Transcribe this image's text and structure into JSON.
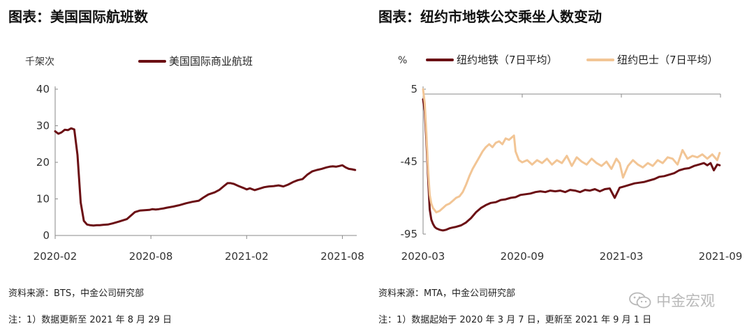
{
  "left_panel": {
    "title": "图表：美国国际航班数",
    "source": "资料来源：BTS，中金公司研究部",
    "note": "注：1）数据更新至 2021 年 8 月 29 日"
  },
  "right_panel": {
    "title": "图表：纽约市地铁公交乘坐人数变动",
    "source": "资料来源：MTA，中金公司研究部",
    "note": "注：1）数据起始于 2020 年 3 月 7 日，更新至 2021 年 9 月 1 日"
  },
  "watermark": {
    "text": "中金宏观",
    "icon": "wechat-icon"
  },
  "colors": {
    "dark_red": "#6b0f14",
    "tan": "#f2c595",
    "axis": "#888888"
  },
  "chart_data": [
    {
      "type": "line",
      "title": "",
      "ylabel": "千架次",
      "xlabel": "",
      "ylim": [
        0,
        40
      ],
      "yticks": [
        0,
        10,
        20,
        30,
        40
      ],
      "xtick_labels": [
        "2020-02",
        "2020-08",
        "2021-02",
        "2021-08"
      ],
      "xtick_positions": [
        0,
        6,
        12,
        18
      ],
      "x_range": [
        0,
        18.9
      ],
      "legend_position": "top",
      "grid": false,
      "series": [
        {
          "name": "美国国际商业航班",
          "color": "#6b0f14",
          "x": [
            0,
            0.2,
            0.4,
            0.6,
            0.8,
            1.0,
            1.2,
            1.4,
            1.6,
            1.8,
            2.0,
            2.2,
            2.4,
            2.6,
            2.8,
            3.0,
            3.3,
            3.6,
            4.0,
            4.5,
            5.0,
            5.3,
            5.6,
            5.9,
            6.1,
            6.3,
            6.5,
            6.8,
            7.0,
            7.4,
            7.8,
            8.2,
            8.6,
            9.0,
            9.3,
            9.6,
            10.0,
            10.3,
            10.6,
            10.8,
            11.0,
            11.2,
            11.5,
            11.8,
            12.0,
            12.2,
            12.5,
            12.8,
            13.1,
            13.4,
            13.7,
            14.0,
            14.3,
            14.6,
            14.9,
            15.2,
            15.5,
            15.8,
            16.1,
            16.4,
            16.7,
            17.0,
            17.2,
            17.4,
            17.6,
            17.8,
            18.0,
            18.2,
            18.4,
            18.6,
            18.8
          ],
          "values": [
            28.5,
            27.8,
            28.2,
            28.9,
            28.8,
            29.3,
            29.0,
            22.0,
            9.0,
            4.0,
            3.0,
            2.8,
            2.7,
            2.8,
            2.8,
            2.9,
            3.0,
            3.3,
            3.8,
            4.5,
            6.4,
            6.8,
            6.9,
            7.0,
            7.2,
            7.1,
            7.2,
            7.4,
            7.6,
            7.9,
            8.3,
            8.8,
            9.2,
            9.5,
            10.4,
            11.2,
            11.8,
            12.5,
            13.6,
            14.3,
            14.3,
            14.1,
            13.5,
            13.0,
            12.6,
            12.9,
            12.4,
            12.8,
            13.2,
            13.4,
            13.5,
            13.7,
            13.4,
            13.9,
            14.6,
            15.1,
            15.4,
            16.6,
            17.5,
            17.9,
            18.2,
            18.6,
            18.8,
            18.9,
            18.8,
            19.0,
            19.2,
            18.6,
            18.2,
            18.1,
            17.9
          ]
        }
      ]
    },
    {
      "type": "line",
      "title": "",
      "ylabel": "%",
      "xlabel": "",
      "ylim": [
        -95,
        5
      ],
      "yticks": [
        5,
        -45,
        -95
      ],
      "xtick_labels": [
        "2020-03",
        "2020-09",
        "2021-03",
        "2021-09"
      ],
      "xtick_positions": [
        0,
        6,
        12,
        18
      ],
      "x_range": [
        0,
        18
      ],
      "legend_position": "top",
      "grid": false,
      "series": [
        {
          "name": "纽约地铁（7日平均）",
          "color": "#6b0f14",
          "x": [
            0,
            0.1,
            0.2,
            0.3,
            0.4,
            0.5,
            0.6,
            0.7,
            0.8,
            1.0,
            1.2,
            1.4,
            1.6,
            1.8,
            2.0,
            2.3,
            2.6,
            2.9,
            3.2,
            3.5,
            3.8,
            4.1,
            4.4,
            4.7,
            5.0,
            5.3,
            5.6,
            5.9,
            6.2,
            6.5,
            6.8,
            7.1,
            7.4,
            7.7,
            8.0,
            8.3,
            8.6,
            8.9,
            9.2,
            9.5,
            9.8,
            10.1,
            10.4,
            10.7,
            11.0,
            11.3,
            11.6,
            11.9,
            12.2,
            12.5,
            12.8,
            13.1,
            13.4,
            13.7,
            14.0,
            14.3,
            14.6,
            14.9,
            15.2,
            15.5,
            15.8,
            16.1,
            16.4,
            16.7,
            17.0,
            17.2,
            17.4,
            17.6,
            17.8,
            17.95
          ],
          "values": [
            -2,
            -10,
            -30,
            -55,
            -78,
            -85,
            -88,
            -90,
            -91,
            -92,
            -92.5,
            -92,
            -91,
            -90.5,
            -90,
            -89,
            -87,
            -84,
            -80,
            -77,
            -75,
            -73.5,
            -73,
            -71.5,
            -71,
            -70,
            -69.5,
            -68,
            -67.5,
            -67,
            -66,
            -65.5,
            -66,
            -65,
            -65.5,
            -65,
            -66,
            -64.5,
            -65,
            -66,
            -64.5,
            -65,
            -64,
            -65.5,
            -64,
            -63.5,
            -70,
            -63,
            -62,
            -61,
            -60,
            -59.5,
            -59,
            -58,
            -57,
            -55.5,
            -55,
            -54,
            -53,
            -51,
            -50,
            -49.5,
            -48,
            -47,
            -46,
            -47.5,
            -46,
            -51,
            -47,
            -47.5
          ]
        },
        {
          "name": "纽约巴士（7日平均）",
          "color": "#f2c595",
          "x": [
            0,
            0.1,
            0.2,
            0.3,
            0.4,
            0.5,
            0.6,
            0.7,
            0.8,
            1.0,
            1.2,
            1.4,
            1.6,
            1.8,
            2.0,
            2.2,
            2.4,
            2.6,
            2.8,
            3.0,
            3.2,
            3.4,
            3.6,
            3.8,
            4.0,
            4.2,
            4.4,
            4.6,
            4.8,
            5.0,
            5.2,
            5.4,
            5.5,
            5.6,
            5.8,
            6.0,
            6.3,
            6.6,
            6.9,
            7.2,
            7.5,
            7.8,
            8.1,
            8.4,
            8.7,
            9.0,
            9.3,
            9.6,
            9.9,
            10.2,
            10.5,
            10.8,
            11.1,
            11.4,
            11.7,
            11.9,
            12.1,
            12.4,
            12.7,
            13.0,
            13.3,
            13.6,
            13.9,
            14.2,
            14.5,
            14.8,
            15.1,
            15.4,
            15.7,
            16.0,
            16.3,
            16.6,
            16.9,
            17.2,
            17.5,
            17.8,
            17.95
          ],
          "values": [
            5,
            -5,
            -25,
            -50,
            -68,
            -74,
            -77,
            -78.5,
            -80,
            -79,
            -77,
            -75,
            -74,
            -72,
            -70,
            -69,
            -66,
            -61,
            -55,
            -50,
            -46,
            -42,
            -38,
            -35,
            -33,
            -35,
            -32,
            -31,
            -33,
            -29,
            -30,
            -28,
            -27,
            -38,
            -44,
            -45.5,
            -44,
            -47,
            -44,
            -46,
            -43,
            -47,
            -44,
            -46,
            -41,
            -48,
            -42,
            -45,
            -47,
            -43,
            -46,
            -48,
            -45,
            -50,
            -43,
            -46,
            -56,
            -48,
            -44,
            -47,
            -49,
            -46,
            -48,
            -44,
            -46,
            -42,
            -43,
            -47,
            -37,
            -43,
            -41,
            -42,
            -40,
            -43,
            -40,
            -44,
            -39
          ]
        }
      ]
    }
  ]
}
